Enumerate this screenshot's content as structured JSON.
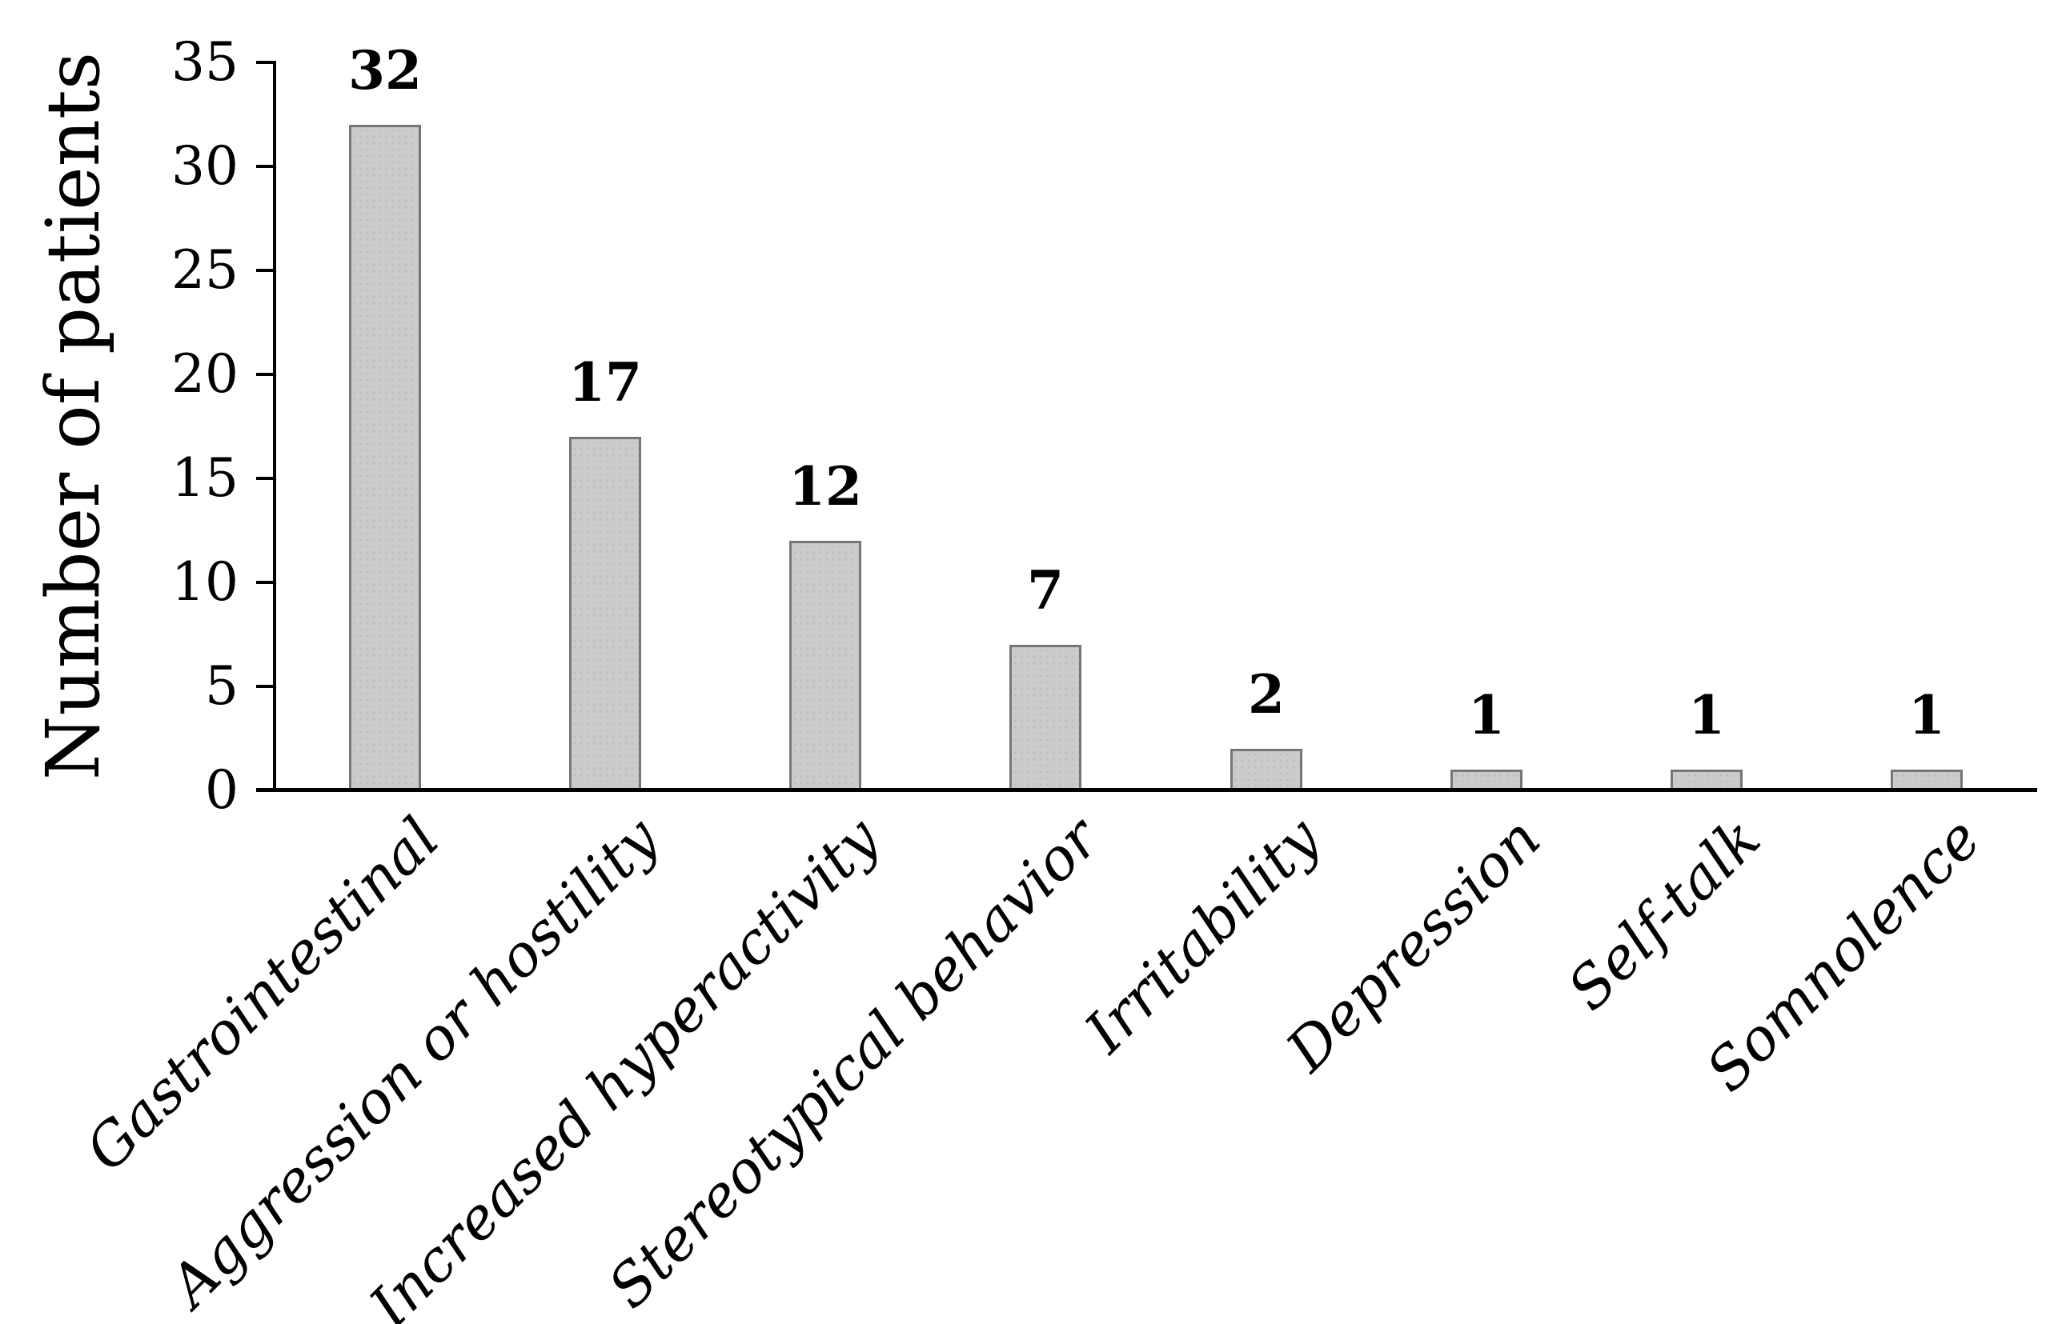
{
  "chart_data": {
    "type": "bar",
    "title": "",
    "xlabel": "",
    "ylabel": "Number of patients",
    "categories": [
      "Gastrointestinal",
      "Aggression or hostility",
      "Increased hyperactivity",
      "Stereotypical behavior",
      "Irritability",
      "Depression",
      "Self-talk",
      "Somnolence"
    ],
    "values": [
      32,
      17,
      12,
      7,
      2,
      1,
      1,
      1
    ],
    "data_labels": [
      "32",
      "17",
      "12",
      "7",
      "2",
      "1",
      "1",
      "1"
    ],
    "yticks": [
      0,
      5,
      10,
      15,
      20,
      25,
      30,
      35
    ],
    "ylim": [
      0,
      35
    ],
    "grid": "off",
    "legend": "none",
    "colors": {
      "bar_fill": "#cbcbcb",
      "bar_border": "#767676",
      "axis": "#000000",
      "text": "#000000"
    }
  }
}
